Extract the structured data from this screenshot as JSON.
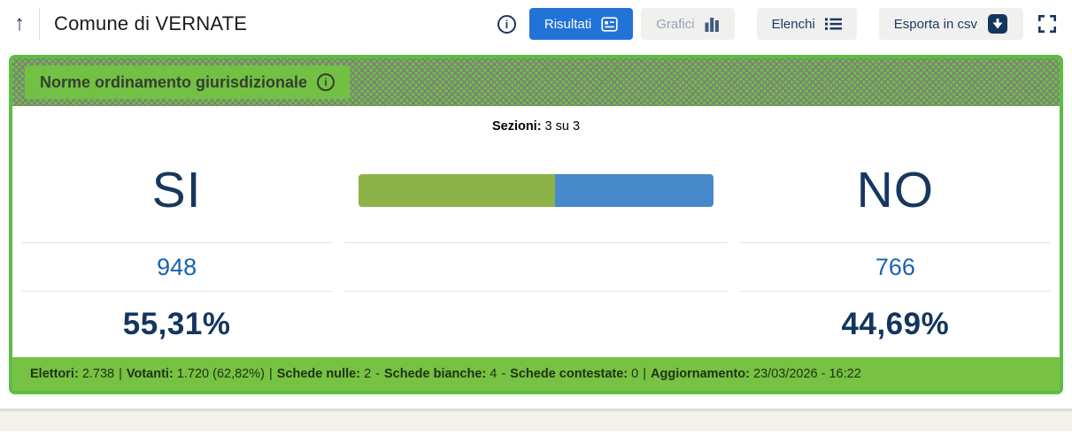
{
  "header": {
    "back_arrow": "↑",
    "title": "Comune di VERNATE",
    "info_icon_glyph": "i",
    "buttons": {
      "risultati": "Risultati",
      "grafici": "Grafici",
      "elenchi": "Elenchi",
      "esporta": "Esporta in csv"
    }
  },
  "card": {
    "banner": {
      "title": "Norme ordinamento giurisdizionale",
      "info_icon_glyph": "i"
    },
    "sezioni": {
      "label": "Sezioni:",
      "value": "3 su 3"
    },
    "si": {
      "label": "SI",
      "votes": "948",
      "percent": "55,31%"
    },
    "no": {
      "label": "NO",
      "votes": "766",
      "percent": "44,69%"
    },
    "bar": {
      "si_value": 55.31,
      "no_value": 44.69,
      "si_color": "#8cb347",
      "no_color": "#4589cb"
    },
    "footer": {
      "stats": [
        {
          "label": "Elettori:",
          "value": "2.738",
          "sep": "|"
        },
        {
          "label": "Votanti:",
          "value": "1.720 (62,82%)",
          "sep": "|"
        },
        {
          "label": "Schede nulle:",
          "value": "2",
          "sep": "-"
        },
        {
          "label": "Schede bianche:",
          "value": "4",
          "sep": "-"
        },
        {
          "label": "Schede contestate:",
          "value": "0",
          "sep": "|"
        },
        {
          "label": "Aggiornamento:",
          "value": "23/03/2026 - 16:22",
          "sep": ""
        }
      ]
    }
  },
  "colors": {
    "card_border_green": "#5ebc44",
    "footer_green": "#77c143",
    "bar_green": "#8cb347",
    "bar_blue": "#4589cb",
    "active_button_blue": "#2173d8",
    "navy_text": "#17375e",
    "votes_blue": "#1b64ae"
  }
}
